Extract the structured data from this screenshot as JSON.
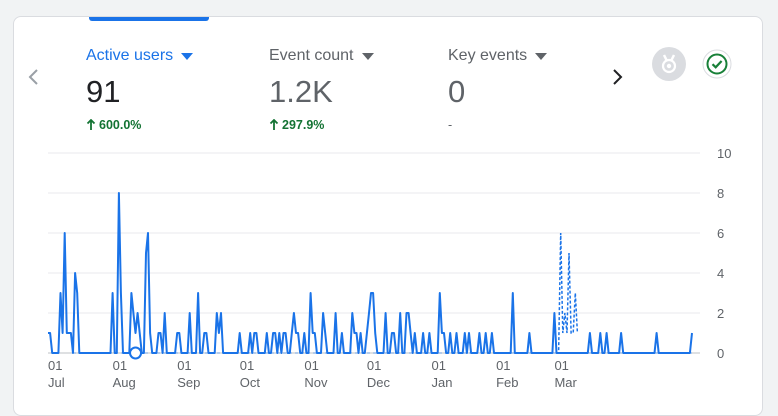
{
  "metrics": [
    {
      "label": "Active users",
      "value": "91",
      "change": "600.0%",
      "direction": "up"
    },
    {
      "label": "Event count",
      "value": "1.2K",
      "change": "297.9%",
      "direction": "up"
    },
    {
      "label": "Key events",
      "value": "0",
      "change": "-",
      "direction": "none"
    }
  ],
  "icons": {
    "prev": "chevron-left-icon",
    "next": "chevron-right-icon",
    "badge": "badge-icon",
    "status": "check-circle-icon"
  },
  "colors": {
    "accent": "#1a73e8",
    "positive": "#137333",
    "status": "#188038"
  },
  "chart_data": {
    "type": "line",
    "ylim": [
      0,
      10
    ],
    "y_ticks": [
      "0",
      "2",
      "4",
      "6",
      "8",
      "10"
    ],
    "x_ticks": [
      {
        "day": "01",
        "month": "Jul",
        "index": 0
      },
      {
        "day": "01",
        "month": "Aug",
        "index": 31
      },
      {
        "day": "01",
        "month": "Sep",
        "index": 62
      },
      {
        "day": "01",
        "month": "Oct",
        "index": 92
      },
      {
        "day": "01",
        "month": "Nov",
        "index": 123
      },
      {
        "day": "01",
        "month": "Dec",
        "index": 153
      },
      {
        "day": "01",
        "month": "Jan",
        "index": 184
      },
      {
        "day": "01",
        "month": "Feb",
        "index": 215
      },
      {
        "day": "01",
        "month": "Mar",
        "index": 243
      }
    ],
    "series": [
      {
        "style": "solid",
        "values": [
          1,
          1,
          0,
          0,
          0,
          0,
          3,
          1,
          6,
          1,
          1,
          1,
          0,
          4,
          3,
          0,
          0,
          0,
          0,
          0,
          0,
          0,
          0,
          0,
          0,
          0,
          0,
          0,
          0,
          0,
          0,
          3,
          0,
          0,
          8,
          3,
          0,
          0,
          0,
          0,
          3,
          2,
          1,
          2,
          1,
          0,
          0,
          5,
          6,
          1,
          0,
          0,
          0,
          1,
          1,
          0,
          2,
          0,
          0,
          0,
          0,
          0,
          1,
          1,
          0,
          0,
          0,
          0,
          2,
          0,
          0,
          0,
          3,
          0,
          0,
          1,
          1,
          0,
          0,
          0,
          0,
          2,
          1,
          2,
          0,
          0,
          0,
          0,
          0,
          0,
          0,
          0,
          1,
          0,
          0,
          0,
          0,
          1,
          0,
          1,
          1,
          0,
          0,
          0,
          0,
          1,
          0,
          0,
          1,
          1,
          0,
          1,
          0,
          1,
          1,
          0,
          0,
          1,
          2,
          1,
          1,
          0,
          0,
          1,
          0,
          0,
          3,
          1,
          1,
          0,
          0,
          0,
          2,
          1,
          0,
          0,
          0,
          0,
          2,
          0,
          0,
          1,
          0,
          0,
          0,
          0,
          2,
          1,
          1,
          0,
          1,
          0,
          0,
          1,
          2,
          3,
          3,
          1,
          0,
          0,
          0,
          0,
          2,
          0,
          0,
          1,
          1,
          0,
          0,
          2,
          0,
          0,
          2,
          2,
          1,
          0,
          1,
          0,
          0,
          0,
          1,
          0,
          0,
          1,
          0,
          0,
          0,
          0,
          3,
          1,
          1,
          0,
          0,
          1,
          0,
          0,
          1,
          0,
          0,
          0,
          1,
          0,
          1,
          0,
          0,
          0,
          0,
          1,
          0,
          0,
          1,
          0,
          0,
          1,
          0,
          0,
          0,
          0,
          0,
          0,
          0,
          0,
          0,
          3,
          0,
          0,
          0,
          0,
          0,
          0,
          0,
          1,
          0,
          0,
          0,
          0,
          0,
          0,
          0,
          0,
          0,
          0,
          0,
          2,
          0,
          0,
          0,
          0,
          0,
          0,
          0,
          0,
          0,
          0,
          0,
          0,
          0,
          0,
          0,
          0,
          1,
          0,
          0,
          0,
          0,
          1,
          0,
          0,
          1,
          0,
          0,
          0,
          0,
          0,
          0,
          1,
          0,
          0,
          0,
          0,
          0,
          0,
          0,
          0,
          0,
          0,
          0,
          0,
          0,
          0,
          0,
          0,
          1,
          0,
          0,
          0,
          0,
          0,
          0,
          0,
          0,
          0,
          0,
          0,
          0,
          0,
          0,
          0,
          0,
          1
        ]
      },
      {
        "style": "dashed",
        "start_index": 244,
        "values": [
          0,
          0,
          6,
          1,
          2,
          1,
          5,
          1,
          1,
          3,
          1
        ]
      }
    ],
    "marker": {
      "index": 42,
      "value": 0
    }
  }
}
